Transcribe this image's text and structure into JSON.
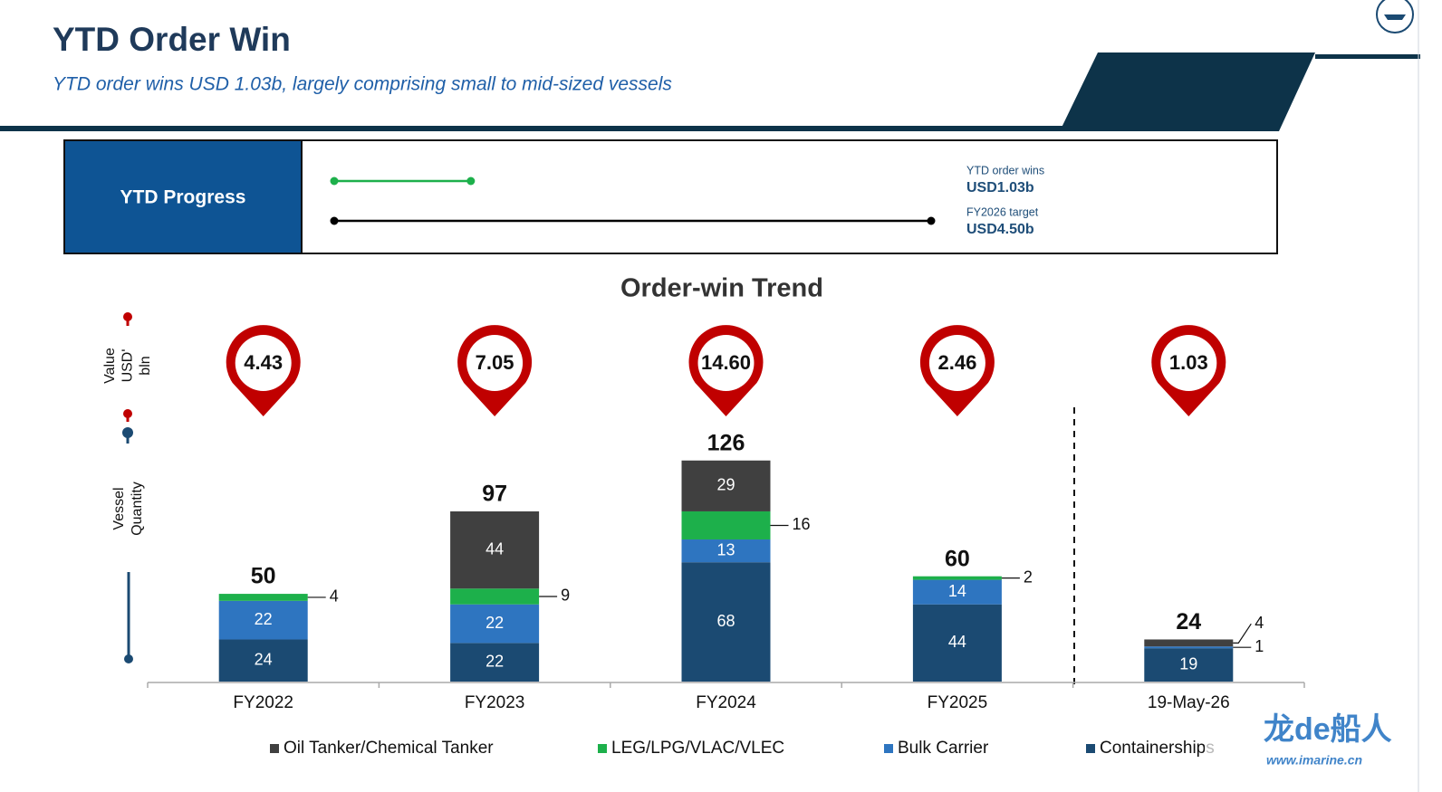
{
  "header": {
    "title": "YTD Order Win",
    "subtitle": "YTD order wins USD 1.03b, largely comprising small to mid-sized vessels"
  },
  "progress": {
    "title": "YTD Progress",
    "items": [
      {
        "label": "YTD order wins",
        "value": 1.03,
        "value_label": "USD1.03b",
        "color": "#1db04b"
      },
      {
        "label": "FY2026 target",
        "value": 4.5,
        "value_label": "USD4.50b",
        "color": "#000000"
      }
    ]
  },
  "chart_data": {
    "type": "bar",
    "stacked": true,
    "title": "Order-win Trend",
    "value_axis_label": [
      "Value",
      "USD'",
      "bln"
    ],
    "quantity_axis_label": [
      "Vessel",
      "Quantity"
    ],
    "categories": [
      "FY2022",
      "FY2023",
      "FY2024",
      "FY2025",
      "19-May-26"
    ],
    "order_values": [
      4.43,
      7.05,
      14.6,
      2.46,
      1.03
    ],
    "order_value_labels": [
      "4.43",
      "7.05",
      "14.60",
      "2.46",
      "1.03"
    ],
    "pin_color": "#c00000",
    "totals": [
      50,
      97,
      126,
      60,
      24
    ],
    "ylim": [
      0,
      130
    ],
    "series": [
      {
        "name": "Oil Tanker/Chemical Tanker",
        "color": "#404040",
        "values": [
          0,
          44,
          29,
          0,
          4
        ]
      },
      {
        "name": "LEG/LPG/VLAC/VLEC",
        "color": "#1db04b",
        "values": [
          4,
          9,
          16,
          2,
          0
        ]
      },
      {
        "name": "Bulk Carrier",
        "color": "#2e75c0",
        "values": [
          22,
          22,
          13,
          14,
          1
        ]
      },
      {
        "name": "Containerships",
        "color": "#1b4a72",
        "values": [
          24,
          22,
          68,
          44,
          19
        ]
      }
    ]
  },
  "watermark": {
    "brand": "龙de船人",
    "url": "www.imarine.cn"
  }
}
